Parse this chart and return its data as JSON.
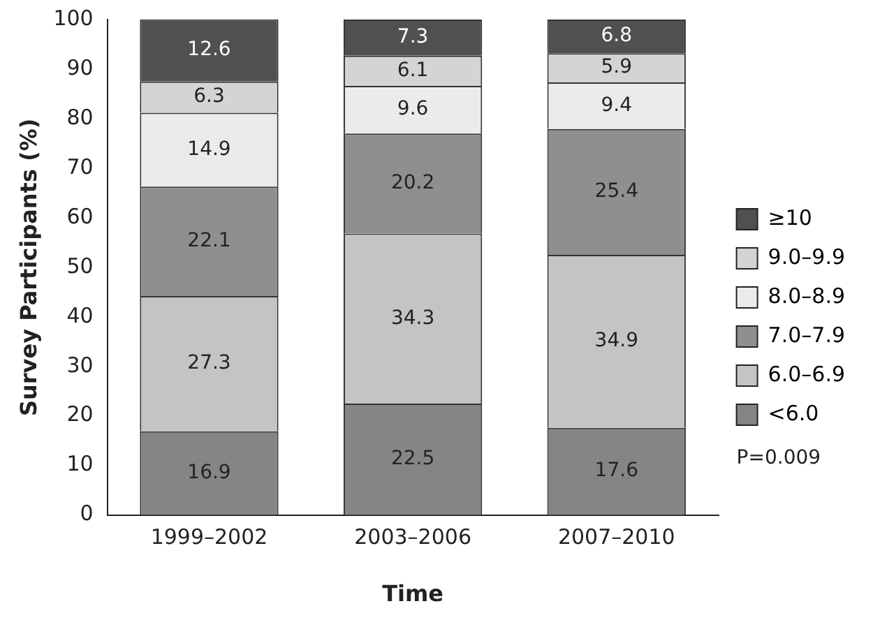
{
  "chart_data": {
    "type": "bar",
    "stacked": true,
    "xlabel": "Time",
    "ylabel": "Survey Participants (%)",
    "categories": [
      "1999–2002",
      "2003–2006",
      "2007–2010"
    ],
    "series": [
      {
        "name": "<6.0",
        "color": "#858585",
        "values": [
          16.9,
          22.5,
          17.6
        ]
      },
      {
        "name": "6.0–6.9",
        "color": "#c4c4c4",
        "values": [
          27.3,
          34.3,
          34.9
        ]
      },
      {
        "name": "7.0–7.9",
        "color": "#8f8f8f",
        "values": [
          22.1,
          20.2,
          25.4
        ]
      },
      {
        "name": "8.0–8.9",
        "color": "#ebebeb",
        "values": [
          14.9,
          9.6,
          9.4
        ]
      },
      {
        "name": "9.0–9.9",
        "color": "#d4d4d4",
        "values": [
          6.3,
          6.1,
          5.9
        ]
      },
      {
        "name": "≥10",
        "color": "#505050",
        "values": [
          12.6,
          7.3,
          6.8
        ]
      }
    ],
    "ylim": [
      0,
      100
    ],
    "yticks": [
      0,
      10,
      20,
      30,
      40,
      50,
      60,
      70,
      80,
      90,
      100
    ],
    "grid": false,
    "legend": "right",
    "data_labels": true,
    "annotations": [
      "P=0.009"
    ]
  }
}
